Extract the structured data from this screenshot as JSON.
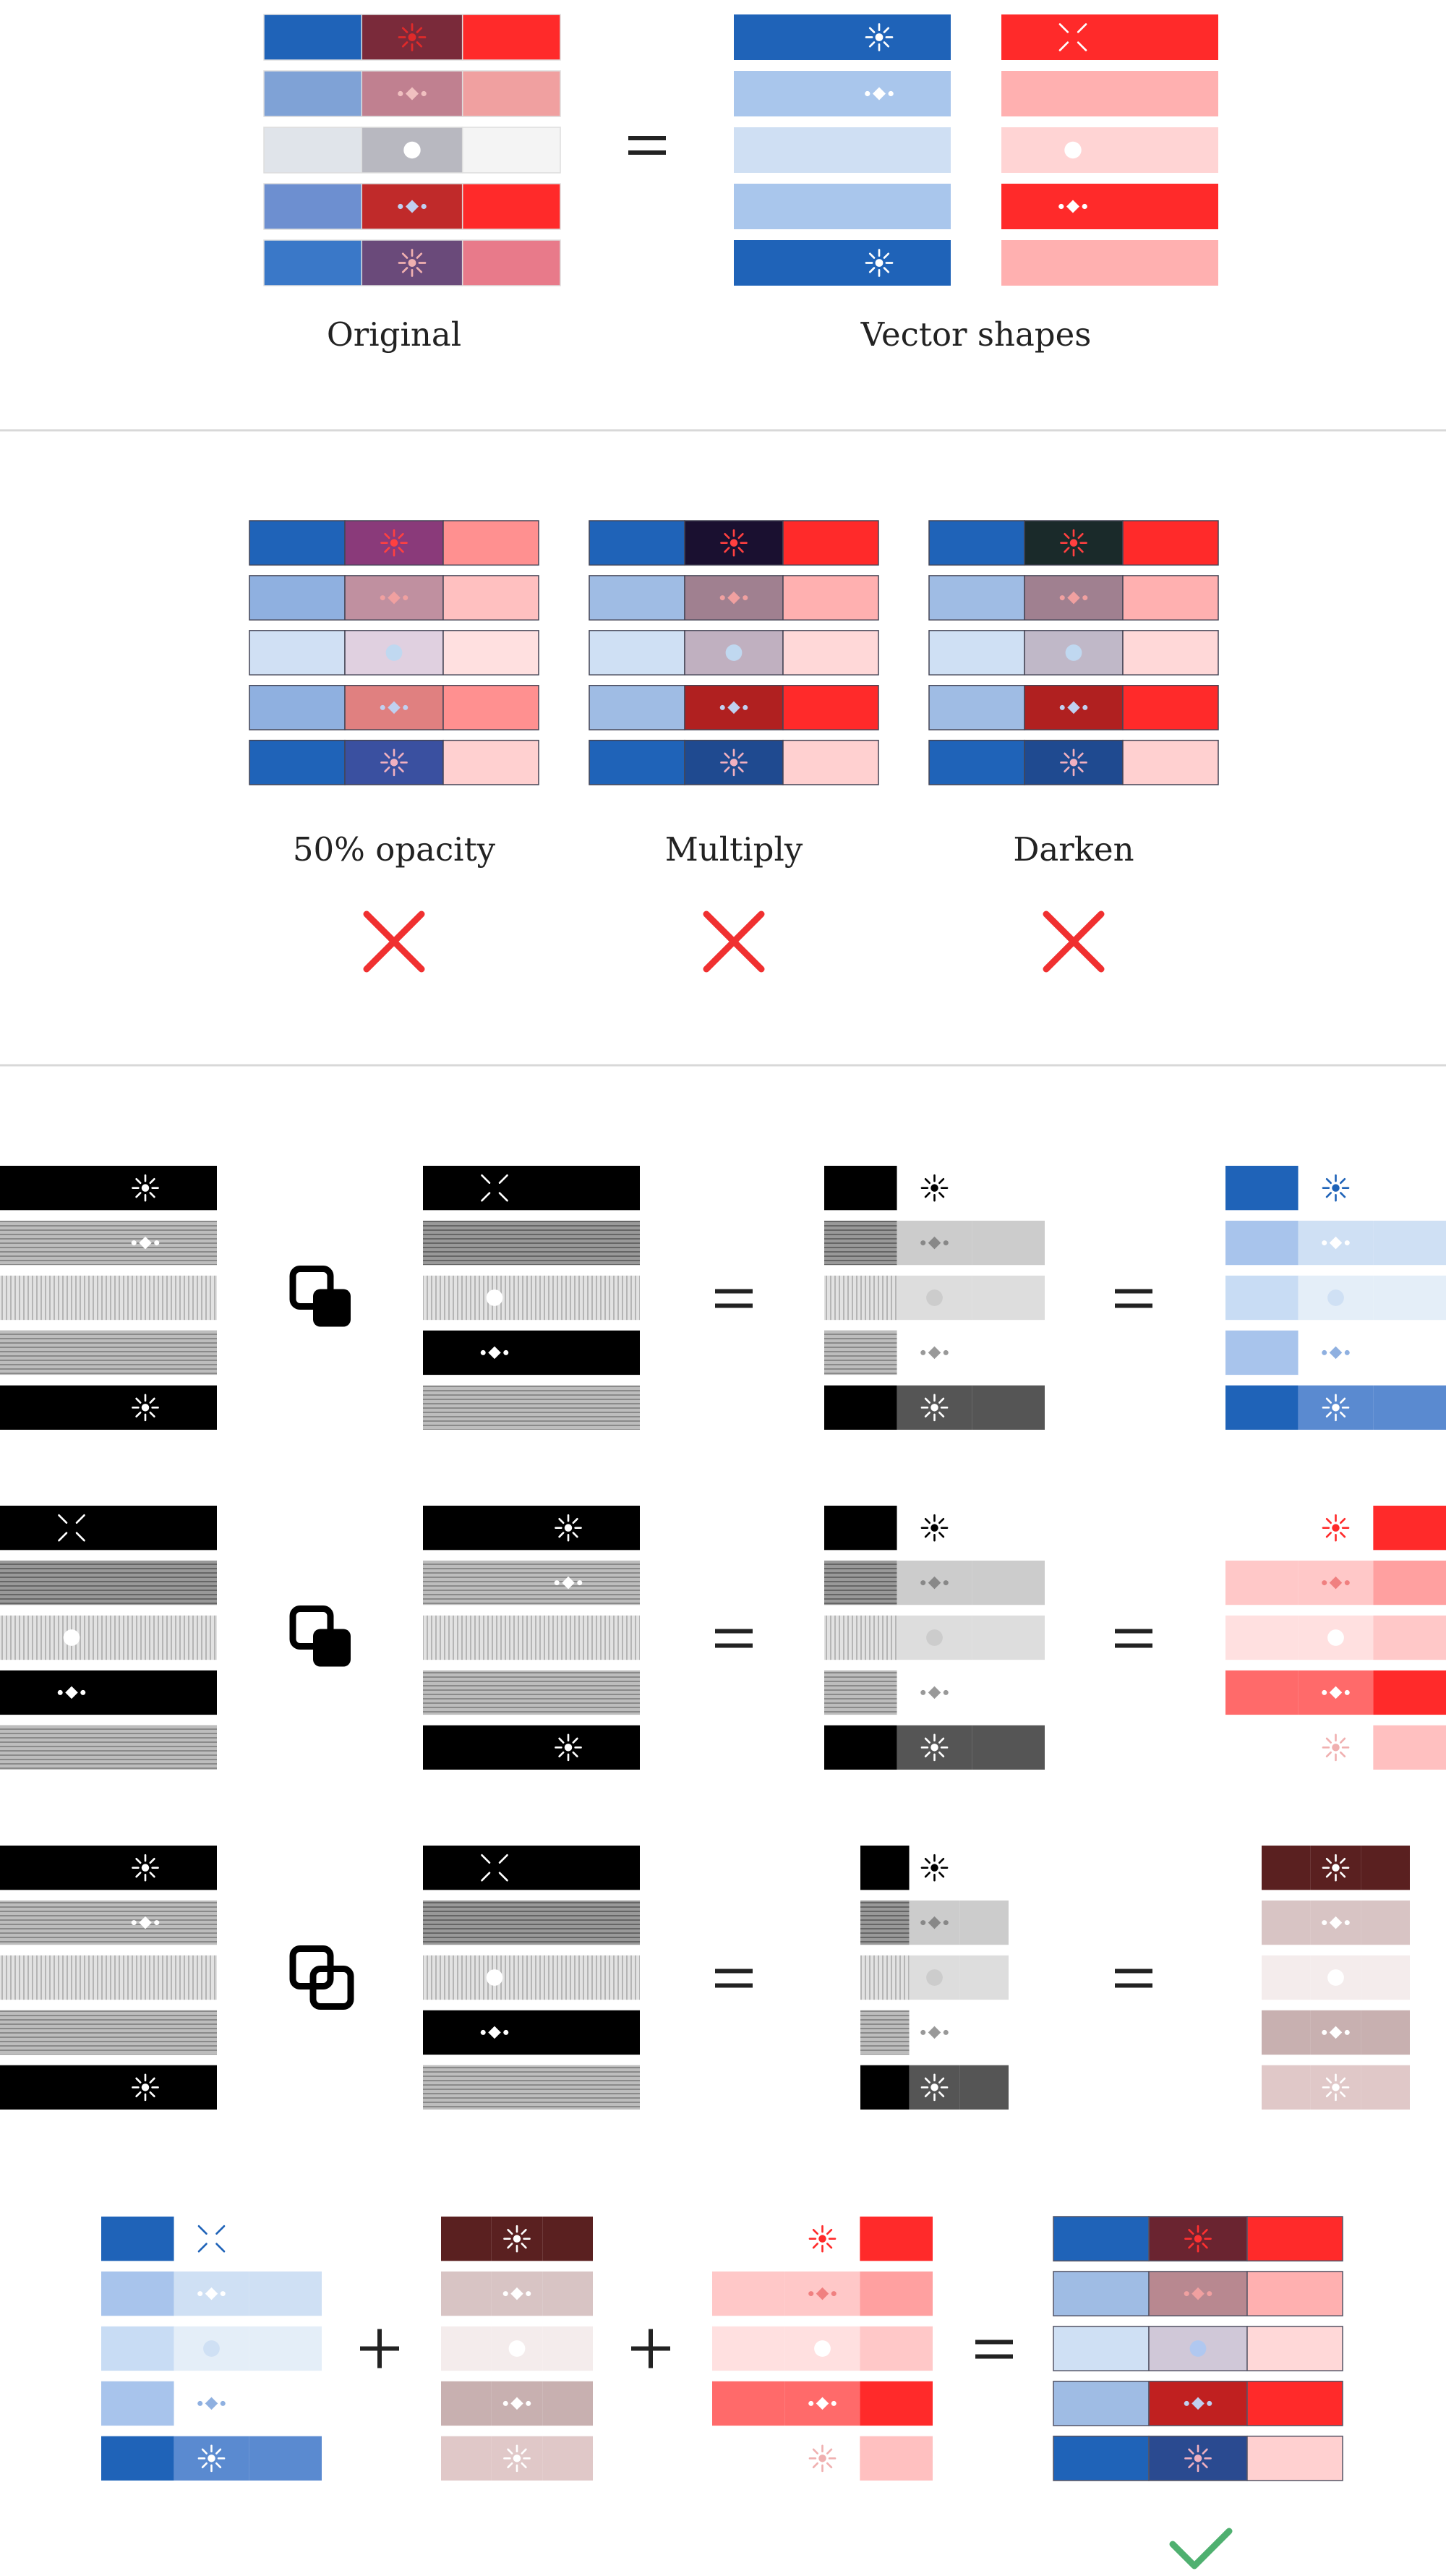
{
  "colors": {
    "blue": "#1f63b8",
    "blue_light": "#a9c6ec",
    "red": "#ff2a2a",
    "red_light": "#ffb0b0",
    "dark": "#5a2020",
    "cross_red": "#f03030",
    "check_green": "#4fb070",
    "divider": "#d8d8d8"
  },
  "section1": {
    "original_label": "Original",
    "vector_label": "Vector shapes"
  },
  "section2": {
    "blends": [
      {
        "label": "50% opacity",
        "mark": "cross-icon"
      },
      {
        "label": "Multiply",
        "mark": "cross-icon"
      },
      {
        "label": "Darken",
        "mark": "cross-icon"
      }
    ]
  },
  "section3": {
    "operations": [
      {
        "icon": "boolean-subtract-front-icon"
      },
      {
        "icon": "boolean-subtract-back-icon"
      },
      {
        "icon": "boolean-intersect-icon"
      }
    ]
  },
  "section4": {
    "plus_symbol": "+",
    "equals_symbol": "=",
    "result_mark": "check-icon"
  },
  "equals_symbol": "="
}
